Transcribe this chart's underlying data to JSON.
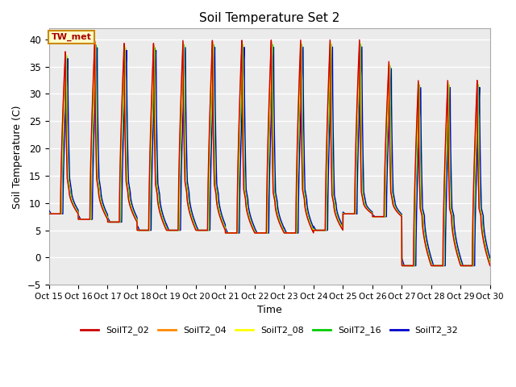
{
  "title": "Soil Temperature Set 2",
  "xlabel": "Time",
  "ylabel": "Soil Temperature (C)",
  "ylim": [
    -5,
    42
  ],
  "yticks": [
    -5,
    0,
    5,
    10,
    15,
    20,
    25,
    30,
    35,
    40
  ],
  "xlim": [
    0,
    360
  ],
  "xtick_positions": [
    0,
    24,
    48,
    72,
    96,
    120,
    144,
    168,
    192,
    216,
    240,
    264,
    288,
    312,
    336,
    360
  ],
  "xtick_labels": [
    "Oct 15",
    "Oct 16",
    "Oct 17",
    "Oct 18",
    "Oct 19",
    "Oct 20",
    "Oct 21",
    "Oct 22",
    "Oct 23",
    "Oct 24",
    "Oct 25",
    "Oct 26",
    "Oct 27",
    "Oct 28",
    "Oct 29",
    "Oct 30"
  ],
  "series_colors": {
    "SoilT2_02": "#cc0000",
    "SoilT2_04": "#ff8800",
    "SoilT2_08": "#ffff00",
    "SoilT2_16": "#00cc00",
    "SoilT2_32": "#0000cc"
  },
  "series_names": [
    "SoilT2_02",
    "SoilT2_04",
    "SoilT2_08",
    "SoilT2_16",
    "SoilT2_32"
  ],
  "legend_box_color": "#ffffcc",
  "legend_box_edge": "#cc8800",
  "annotation_text": "TW_met",
  "background_plot": "#ebebeb",
  "grid_color": "#ffffff",
  "linewidth": 1.0,
  "figsize": [
    6.4,
    4.8
  ],
  "dpi": 100
}
